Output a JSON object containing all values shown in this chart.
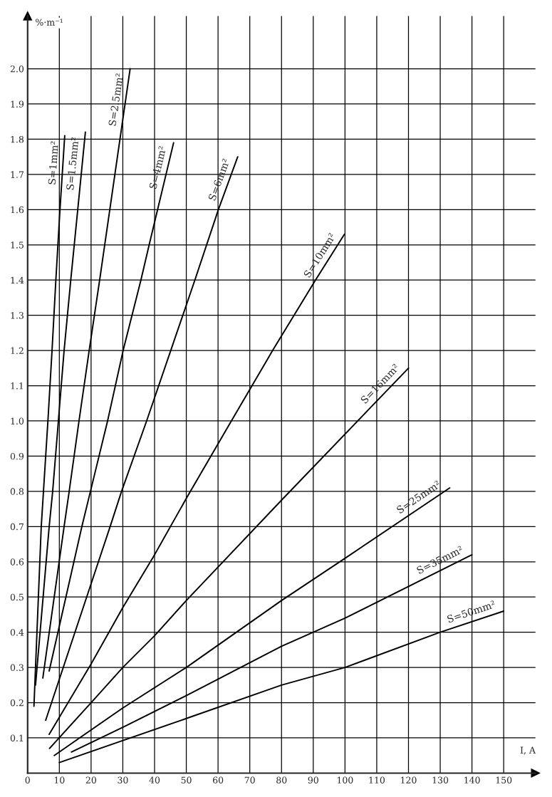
{
  "chart_data": {
    "type": "line",
    "xlabel": "I, A",
    "ylabel": "%·m⁻¹",
    "xlim": [
      0,
      160
    ],
    "ylim": [
      0,
      2.15
    ],
    "xticks": [
      0,
      10,
      20,
      30,
      40,
      50,
      60,
      70,
      80,
      90,
      100,
      110,
      120,
      130,
      140,
      150
    ],
    "yticks": [
      0.1,
      0.2,
      0.3,
      0.4,
      0.5,
      0.6,
      0.7,
      0.8,
      0.9,
      {
        "value": 1.0,
        "label": "1.0"
      },
      1.1,
      1.2,
      1.3,
      1.4,
      1.5,
      1.6,
      1.7,
      1.8,
      1.9,
      {
        "value": 2.0,
        "label": "2.0"
      }
    ],
    "grid": true,
    "legend": false,
    "marker": "none",
    "line_style": "solid",
    "series": [
      {
        "name": "S=1mm²",
        "color": "#000000",
        "x": [
          2,
          4.3,
          5.0,
          6.4,
          7.7,
          8.9,
          10.2,
          11.7
        ],
        "values": [
          0.19,
          0.7,
          0.8,
          1.0,
          1.2,
          1.4,
          1.6,
          1.81
        ]
      },
      {
        "name": "S=1.5mm²",
        "color": "#000000",
        "x": [
          2.5,
          6.8,
          7.9,
          9.7,
          11.5,
          13.6,
          15.8,
          18.2
        ],
        "values": [
          0.25,
          0.7,
          0.8,
          1.0,
          1.2,
          1.4,
          1.6,
          1.82
        ]
      },
      {
        "name": "S=2.5mm²",
        "color": "#000000",
        "x": [
          4.8,
          11.5,
          13.1,
          16.2,
          19.4,
          22.7,
          29.1,
          32.3
        ],
        "values": [
          0.27,
          0.7,
          0.8,
          1.0,
          1.2,
          1.4,
          1.8,
          2.0
        ]
      },
      {
        "name": "S=4mm²",
        "color": "#000000",
        "x": [
          6.8,
          17.1,
          19.8,
          25.2,
          30.1,
          35.7,
          38.3,
          46
        ],
        "values": [
          0.29,
          0.7,
          0.8,
          1.0,
          1.2,
          1.4,
          1.5,
          1.79
        ]
      },
      {
        "name": "S=6mm²",
        "color": "#000000",
        "x": [
          5.7,
          26,
          29.6,
          37.5,
          45.1,
          52.7,
          60.1,
          66.2
        ],
        "values": [
          0.15,
          0.7,
          0.8,
          1.0,
          1.2,
          1.4,
          1.6,
          1.75
        ]
      },
      {
        "name": "S=10mm²",
        "color": "#000000",
        "x": [
          6.8,
          20,
          30,
          40,
          50,
          64.2,
          77.2,
          90.7,
          99.8
        ],
        "values": [
          0.11,
          0.31,
          0.47,
          0.62,
          0.78,
          1.0,
          1.2,
          1.4,
          1.53
        ]
      },
      {
        "name": "S=16mm²",
        "color": "#000000",
        "x": [
          6.9,
          20,
          30,
          40,
          50,
          80,
          120
        ],
        "values": [
          0.07,
          0.2,
          0.3,
          0.39,
          0.49,
          0.775,
          1.15
        ]
      },
      {
        "name": "S=25mm²",
        "color": "#000000",
        "x": [
          8.4,
          30,
          50,
          80,
          100,
          133
        ],
        "values": [
          0.05,
          0.185,
          0.3,
          0.49,
          0.61,
          0.81
        ]
      },
      {
        "name": "S=35mm²",
        "color": "#000000",
        "x": [
          13.8,
          30,
          50,
          80,
          100,
          140
        ],
        "values": [
          0.06,
          0.13,
          0.22,
          0.36,
          0.44,
          0.62
        ]
      },
      {
        "name": "S=50mm²",
        "color": "#000000",
        "x": [
          10,
          50,
          80,
          100,
          130,
          150
        ],
        "values": [
          0.03,
          0.155,
          0.25,
          0.3,
          0.4,
          0.46
        ]
      }
    ]
  }
}
